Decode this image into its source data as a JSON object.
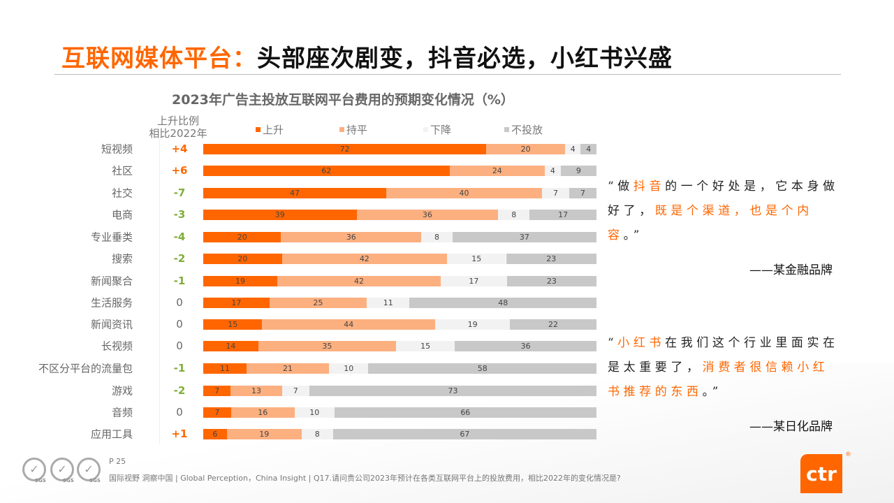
{
  "header": {
    "title_highlight": "互联网媒体平台：",
    "title_rest": "头部座次剧变，抖音必选，小红书兴盛"
  },
  "colors": {
    "up": "#FF6600",
    "flat": "#FCB080",
    "down": "#F2F2F2",
    "none": "#C8C8C8",
    "delta_pos": "#FF6600",
    "delta_neg": "#7FAE3A",
    "delta_zero": "#666666"
  },
  "chart_data": {
    "type": "bar",
    "stacked": true,
    "orientation": "horizontal",
    "title": "2023年广告主投放互联网平台费用的预期变化情况（%）",
    "delta_header": [
      "上升比例",
      "相比2022年"
    ],
    "legend_position": "top",
    "xlim": [
      0,
      100
    ],
    "categories": [
      "短视频",
      "社区",
      "社交",
      "电商",
      "专业垂类",
      "搜索",
      "新闻聚合",
      "生活服务",
      "新闻资讯",
      "长视频",
      "不区分平台的流量包",
      "游戏",
      "音频",
      "应用工具"
    ],
    "delta": [
      "+4",
      "+6",
      "-7",
      "-3",
      "-4",
      "-2",
      "-1",
      "0",
      "0",
      "0",
      "-1",
      "-2",
      "0",
      "+1"
    ],
    "series": [
      {
        "name": "上升",
        "values": [
          72,
          62,
          47,
          39,
          20,
          20,
          19,
          17,
          15,
          14,
          11,
          7,
          7,
          6
        ]
      },
      {
        "name": "持平",
        "values": [
          20,
          24,
          40,
          36,
          36,
          42,
          42,
          25,
          44,
          35,
          21,
          13,
          16,
          19
        ]
      },
      {
        "name": "下降",
        "values": [
          4,
          4,
          7,
          8,
          8,
          15,
          17,
          11,
          19,
          15,
          10,
          7,
          10,
          8
        ]
      },
      {
        "name": "不投放",
        "values": [
          4,
          9,
          7,
          17,
          37,
          23,
          23,
          48,
          22,
          36,
          58,
          73,
          66,
          67
        ]
      }
    ]
  },
  "quotes": [
    {
      "segments": [
        {
          "t": "“做",
          "hl": false
        },
        {
          "t": "抖音",
          "hl": true
        },
        {
          "t": "的一个好处是，它本身做好了，",
          "hl": false
        },
        {
          "t": "既是个渠道，也是个内容",
          "hl": true
        },
        {
          "t": "。”",
          "hl": false
        }
      ],
      "source": "——某金融品牌"
    },
    {
      "segments": [
        {
          "t": "“",
          "hl": false
        },
        {
          "t": "小红书",
          "hl": true
        },
        {
          "t": "在我们这个行业里面实在是太重要了，",
          "hl": false
        },
        {
          "t": "消费者很信赖小红书推荐的东西",
          "hl": true
        },
        {
          "t": "。”",
          "hl": false
        }
      ],
      "source": "——某日化品牌"
    }
  ],
  "footer": {
    "page": "P 25",
    "note": "国际视野  洞察中国 | Global Perception，China Insight  |  Q17.请问贵公司2023年预计在各类互联网平台上的投放费用，相比2022年的变化情况是?",
    "sgs": "SGS",
    "logo": "ctr",
    "reg": "®"
  }
}
